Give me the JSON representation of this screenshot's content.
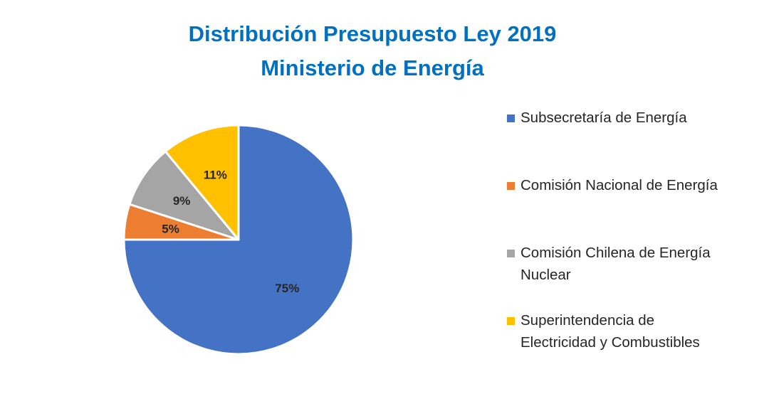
{
  "chart_data": {
    "type": "pie",
    "title": [
      "Distribución Presupuesto Ley 2019",
      "Ministerio de Energía"
    ],
    "categories": [
      "Subsecretaría de Energía",
      "Comisión Nacional de Energía",
      "Comisión Chilena de Energía Nuclear",
      "Superintendencia de Electricidad y Combustibles"
    ],
    "legend_lines": [
      [
        "Subsecretaría de Energía"
      ],
      [
        "Comisión Nacional de Energía"
      ],
      [
        "Comisión Chilena de Energía",
        "Nuclear"
      ],
      [
        "Superintendencia de",
        "Electricidad y Combustibles"
      ]
    ],
    "values": [
      75,
      5,
      9,
      11
    ],
    "data_labels": [
      "75%",
      "5%",
      "9%",
      "11%"
    ],
    "colors": [
      "#4472C4",
      "#ED7D31",
      "#A5A5A5",
      "#FFC000"
    ],
    "legend_position": "right"
  }
}
